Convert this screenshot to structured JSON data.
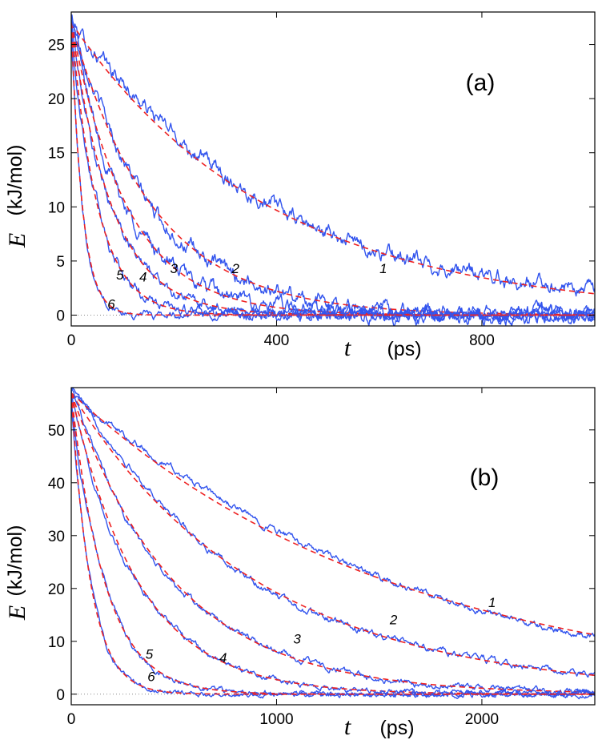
{
  "chart_data": [
    {
      "type": "line",
      "panel_label": "(a)",
      "xlabel_symbol": "t",
      "xlabel_unit": "(ps)",
      "ylabel_symbol": "E",
      "ylabel_unit": "(kJ/mol)",
      "xlim": [
        0,
        1020
      ],
      "ylim": [
        -1,
        28
      ],
      "xticks": [
        0,
        400,
        800
      ],
      "xtick_labels": [
        "0",
        "400",
        "800"
      ],
      "yticks": [
        0,
        5,
        10,
        15,
        20,
        25
      ],
      "ytick_labels": [
        "0",
        "5",
        "10",
        "15",
        "20",
        "25"
      ],
      "E0": 27,
      "reference_line_y": 0,
      "colors": {
        "simulation": "#3355ee",
        "fit": "#ee2222",
        "reference": "#888888"
      },
      "series": [
        {
          "name": "1",
          "tau": 390,
          "noise": 0.4,
          "end": 0.3
        },
        {
          "name": "2",
          "tau": 160,
          "noise": 0.4,
          "end": 0.0
        },
        {
          "name": "3",
          "tau": 110,
          "noise": 0.4,
          "end": 0.0
        },
        {
          "name": "4",
          "tau": 80,
          "noise": 0.3,
          "end": 0.0
        },
        {
          "name": "5",
          "tau": 52,
          "noise": 0.3,
          "end": 0.0
        },
        {
          "name": "6",
          "tau": 22,
          "noise": 0.2,
          "end": 0.0
        }
      ],
      "curve_labels": [
        {
          "text": "1",
          "x": 608,
          "y": 3.9
        },
        {
          "text": "2",
          "x": 320,
          "y": 3.9
        },
        {
          "text": "3",
          "x": 200,
          "y": 3.9
        },
        {
          "text": "4",
          "x": 140,
          "y": 3.1
        },
        {
          "text": "5",
          "x": 95,
          "y": 3.3
        },
        {
          "text": "6",
          "x": 78,
          "y": 0.6
        }
      ]
    },
    {
      "type": "line",
      "panel_label": "(b)",
      "xlabel_symbol": "t",
      "xlabel_unit": "(ps)",
      "ylabel_symbol": "E",
      "ylabel_unit": "(kJ/mol)",
      "xlim": [
        0,
        2550
      ],
      "ylim": [
        -2,
        58
      ],
      "xticks": [
        0,
        1000,
        2000
      ],
      "xtick_labels": [
        "0",
        "1000",
        "2000"
      ],
      "yticks": [
        0,
        10,
        20,
        30,
        40,
        50
      ],
      "ytick_labels": [
        "0",
        "10",
        "20",
        "30",
        "40",
        "50"
      ],
      "E0": 57,
      "reference_line_y": 0,
      "colors": {
        "simulation": "#3355ee",
        "fit": "#ee2222",
        "reference": "#888888"
      },
      "series": [
        {
          "name": "1",
          "tau": 1570,
          "noise": 0.35,
          "end": 0.0
        },
        {
          "name": "2",
          "tau": 920,
          "noise": 0.35,
          "end": 0.0
        },
        {
          "name": "3",
          "tau": 510,
          "noise": 0.35,
          "end": 0.0
        },
        {
          "name": "4",
          "tau": 330,
          "noise": 0.3,
          "end": 0.0
        },
        {
          "name": "5",
          "tau": 165,
          "noise": 0.3,
          "end": 0.0
        },
        {
          "name": "6",
          "tau": 95,
          "noise": 0.25,
          "end": 0.0
        }
      ],
      "curve_labels": [
        {
          "text": "1",
          "x": 2050,
          "y": 16.5
        },
        {
          "text": "2",
          "x": 1570,
          "y": 13.2
        },
        {
          "text": "3",
          "x": 1100,
          "y": 9.6
        },
        {
          "text": "4",
          "x": 740,
          "y": 6.0
        },
        {
          "text": "5",
          "x": 380,
          "y": 6.7
        },
        {
          "text": "6",
          "x": 390,
          "y": 2.5
        }
      ]
    }
  ]
}
